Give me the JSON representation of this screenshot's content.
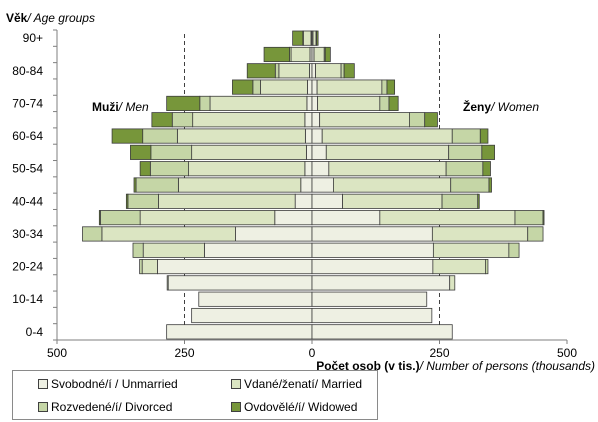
{
  "chart_data": {
    "type": "bar",
    "orientation": "horizontal-population-pyramid",
    "stacked": true,
    "y_title": {
      "cz": "Věk",
      "en": "/ Age groups"
    },
    "x_title": {
      "cz": "Počet osob  (v tis.)",
      "en": "/ Number of persons (thousands)"
    },
    "left_label": {
      "cz": "Muži",
      "en": "/ Men"
    },
    "right_label": {
      "cz": "Ženy",
      "en": "/ Women"
    },
    "x_ticks": [
      {
        "value": -500,
        "label": "500"
      },
      {
        "value": -250,
        "label": "250"
      },
      {
        "value": 0,
        "label": "0"
      },
      {
        "value": 250,
        "label": "250"
      },
      {
        "value": 500,
        "label": "500"
      }
    ],
    "xlim": [
      -500,
      500
    ],
    "reference_lines": [
      -250,
      250
    ],
    "categories": [
      "0-4",
      "5-9",
      "10-14",
      "15-19",
      "20-24",
      "25-29",
      "30-34",
      "35-39",
      "40-44",
      "45-49",
      "50-54",
      "55-59",
      "60-64",
      "65-69",
      "70-74",
      "75-79",
      "80-84",
      "85-89",
      "90+"
    ],
    "y_tick_labels": [
      "0-4",
      "10-14",
      "20-24",
      "30-34",
      "40-44",
      "50-54",
      "60-64",
      "70-74",
      "80-84",
      "90+"
    ],
    "series": [
      {
        "name": "Svobodné/í / Unmarried",
        "color": "#eef0e3",
        "men": [
          285,
          236,
          222,
          282,
          303,
          211,
          150,
          73,
          33,
          22,
          14,
          11,
          13,
          14,
          10,
          9,
          5,
          4,
          2
        ],
        "women": [
          275,
          235,
          225,
          270,
          237,
          238,
          236,
          133,
          60,
          42,
          33,
          28,
          20,
          15,
          11,
          10,
          7,
          4,
          2
        ]
      },
      {
        "name": "Vdané/ženatí/ Married",
        "color": "#dbe5c2",
        "men": [
          0,
          0,
          0,
          2,
          30,
          120,
          262,
          264,
          268,
          240,
          228,
          225,
          251,
          220,
          190,
          92,
          60,
          37,
          15
        ],
        "women": [
          0,
          0,
          0,
          10,
          103,
          148,
          187,
          265,
          195,
          230,
          230,
          240,
          255,
          176,
          122,
          127,
          50,
          20,
          6
        ]
      },
      {
        "name": "Rozvedené/í/ Divorced",
        "color": "#c5d6a6",
        "men": [
          0,
          0,
          0,
          0,
          5,
          20,
          38,
          78,
          60,
          83,
          75,
          80,
          68,
          40,
          20,
          15,
          7,
          3,
          1
        ],
        "women": [
          0,
          0,
          0,
          0,
          5,
          20,
          30,
          55,
          70,
          75,
          72,
          65,
          55,
          30,
          18,
          10,
          6,
          2,
          1
        ]
      },
      {
        "name": "Ovdovělé/í/ Widowed",
        "color": "#77963a",
        "men": [
          0,
          0,
          0,
          0,
          0,
          0,
          0,
          2,
          3,
          4,
          20,
          40,
          60,
          40,
          65,
          40,
          55,
          50,
          20
        ],
        "women": [
          0,
          0,
          0,
          0,
          0,
          0,
          0,
          2,
          3,
          5,
          15,
          25,
          15,
          25,
          18,
          15,
          20,
          10,
          3
        ]
      }
    ]
  }
}
